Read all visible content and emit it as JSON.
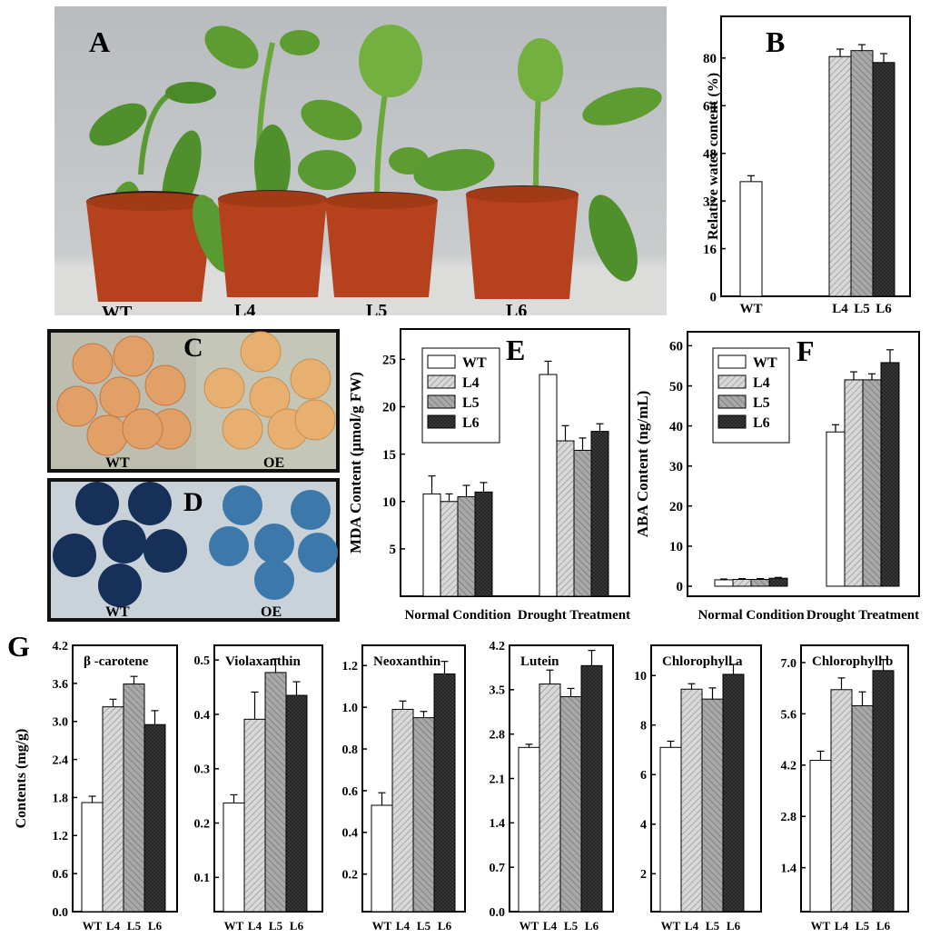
{
  "panel_labels": {
    "a": "A",
    "b": "B",
    "c": "C",
    "d": "D",
    "e": "E",
    "f": "F",
    "g": "G"
  },
  "photo_a": {
    "plants": [
      "WT",
      "L4",
      "L5",
      "L6"
    ]
  },
  "photo_c": {
    "left": "WT",
    "right": "OE"
  },
  "photo_d": {
    "left": "WT",
    "right": "OE"
  },
  "colors": {
    "WT": "#ffffff",
    "L4": "#d8d8d8",
    "L5": "#a8a8a8",
    "L6": "#404040",
    "axis": "#000000"
  },
  "chart_data": [
    {
      "id": "B",
      "type": "bar",
      "categories": [
        "WT",
        "L4",
        "L5",
        "L6"
      ],
      "values": [
        38.5,
        80.5,
        82.5,
        78.5
      ],
      "errors": [
        2.0,
        2.5,
        2.0,
        3.0
      ],
      "ylabel": "Relative water content (%)",
      "ylim": [
        0,
        94
      ],
      "yticks": [
        0,
        16,
        32,
        48,
        64,
        80
      ]
    },
    {
      "id": "E",
      "type": "bar",
      "groups": [
        "Normal Condition",
        "Drought Treatment"
      ],
      "series": [
        {
          "name": "WT",
          "values": [
            10.8,
            23.4
          ],
          "errors": [
            1.9,
            1.4
          ]
        },
        {
          "name": "L4",
          "values": [
            10.0,
            16.4
          ],
          "errors": [
            0.8,
            1.6
          ]
        },
        {
          "name": "L5",
          "values": [
            10.5,
            15.4
          ],
          "errors": [
            1.2,
            1.3
          ]
        },
        {
          "name": "L6",
          "values": [
            11.0,
            17.4
          ],
          "errors": [
            1.0,
            0.8
          ]
        }
      ],
      "ylabel": "MDA Content (μmol/g FW)",
      "ylim": [
        0,
        28.2
      ],
      "yticks": [
        5,
        10,
        15,
        20,
        25
      ],
      "legend": "top-left"
    },
    {
      "id": "F",
      "type": "bar",
      "groups": [
        "Normal Condition",
        "Drought Treatment"
      ],
      "series": [
        {
          "name": "WT",
          "values": [
            1.6,
            38.5
          ],
          "errors": [
            0.2,
            1.8
          ]
        },
        {
          "name": "L4",
          "values": [
            1.7,
            51.5
          ],
          "errors": [
            0.2,
            2.0
          ]
        },
        {
          "name": "L5",
          "values": [
            1.7,
            51.5
          ],
          "errors": [
            0.2,
            1.5
          ]
        },
        {
          "name": "L6",
          "values": [
            2.0,
            55.8
          ],
          "errors": [
            0.2,
            3.2
          ]
        }
      ],
      "ylabel": "ABA Content (ng/mL)",
      "ylim": [
        -2.5,
        63.5
      ],
      "yticks": [
        0,
        10,
        20,
        30,
        40,
        50,
        60
      ],
      "legend": "top-left"
    },
    {
      "id": "G1",
      "type": "bar",
      "title": "β -carotene",
      "categories": [
        "WT",
        "L4",
        "L5",
        "L6"
      ],
      "values": [
        1.72,
        3.23,
        3.59,
        2.95
      ],
      "errors": [
        0.1,
        0.12,
        0.12,
        0.22
      ],
      "ylabel": "Contents (mg/g)",
      "ylim": [
        0,
        4.2
      ],
      "yticks": [
        "0.0",
        "0.6",
        "1.2",
        "1.8",
        "2.4",
        "3.0",
        "3.6",
        "4.2"
      ]
    },
    {
      "id": "G2",
      "type": "bar",
      "title": "Violaxanthin",
      "categories": [
        "WT",
        "L4",
        "L5",
        "L6"
      ],
      "values": [
        0.237,
        0.391,
        0.477,
        0.435
      ],
      "errors": [
        0.015,
        0.05,
        0.025,
        0.025
      ],
      "ylim": [
        0.037,
        0.527
      ],
      "yticks": [
        "0.1",
        "0.2",
        "0.3",
        "0.4",
        "0.5"
      ]
    },
    {
      "id": "G3",
      "type": "bar",
      "title": "Neoxanthin",
      "categories": [
        "WT",
        "L4",
        "L5",
        "L6"
      ],
      "values": [
        0.53,
        0.99,
        0.95,
        1.16
      ],
      "errors": [
        0.06,
        0.04,
        0.03,
        0.06
      ],
      "ylim": [
        0.02,
        1.297
      ],
      "yticks": [
        "0.2",
        "0.4",
        "0.6",
        "0.8",
        "1.0",
        "1.2"
      ]
    },
    {
      "id": "G4",
      "type": "bar",
      "title": "Lutein",
      "categories": [
        "WT",
        "L4",
        "L5",
        "L6"
      ],
      "values": [
        2.59,
        3.59,
        3.39,
        3.88
      ],
      "errors": [
        0.05,
        0.22,
        0.13,
        0.24
      ],
      "ylim": [
        0,
        4.2
      ],
      "yticks": [
        "0.0",
        "0.7",
        "1.4",
        "2.1",
        "2.8",
        "3.5",
        "4.2"
      ]
    },
    {
      "id": "G5",
      "type": "bar",
      "title": "Chlorophyll a",
      "categories": [
        "WT",
        "L4",
        "L5",
        "L6"
      ],
      "values": [
        7.1,
        9.45,
        9.05,
        10.05
      ],
      "errors": [
        0.25,
        0.22,
        0.45,
        0.4
      ],
      "ylim": [
        0.47,
        11.22
      ],
      "yticks": [
        "2",
        "4",
        "6",
        "8",
        "10"
      ]
    },
    {
      "id": "G6",
      "type": "bar",
      "title": "Chlorophyll b",
      "categories": [
        "WT",
        "L4",
        "L5",
        "L6"
      ],
      "values": [
        4.33,
        6.26,
        5.82,
        6.78
      ],
      "errors": [
        0.25,
        0.32,
        0.38,
        0.3
      ],
      "ylim": [
        0.2,
        7.47
      ],
      "yticks": [
        "1.4",
        "2.8",
        "4.2",
        "5.6",
        "7.0"
      ]
    }
  ]
}
